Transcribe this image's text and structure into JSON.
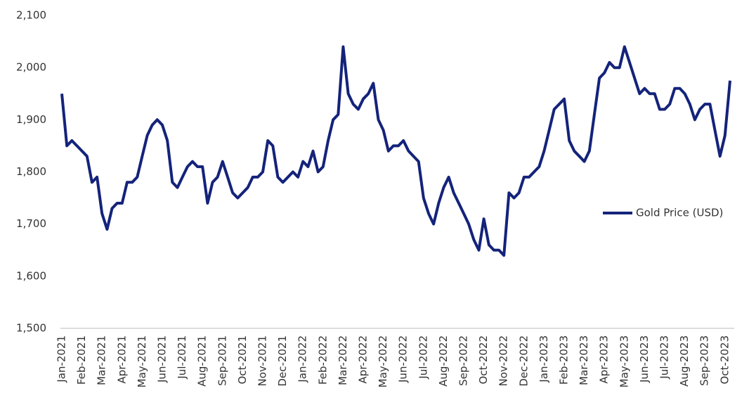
{
  "chart_data": {
    "type": "line",
    "categories": [
      "Jan-2021",
      null,
      null,
      null,
      "Feb-2021",
      null,
      null,
      null,
      "Mar-2021",
      null,
      null,
      null,
      "Apr-2021",
      null,
      null,
      null,
      "May-2021",
      null,
      null,
      null,
      "Jun-2021",
      null,
      null,
      null,
      "Jul-2021",
      null,
      null,
      null,
      "Aug-2021",
      null,
      null,
      null,
      "Sep-2021",
      null,
      null,
      null,
      "Oct-2021",
      null,
      null,
      null,
      "Nov-2021",
      null,
      null,
      null,
      "Dec-2021",
      null,
      null,
      null,
      "Jan-2022",
      null,
      null,
      null,
      "Feb-2022",
      null,
      null,
      null,
      "Mar-2022",
      null,
      null,
      null,
      "Apr-2022",
      null,
      null,
      null,
      "May-2022",
      null,
      null,
      null,
      "Jun-2022",
      null,
      null,
      null,
      "Jul-2022",
      null,
      null,
      null,
      "Aug-2022",
      null,
      null,
      null,
      "Sep-2022",
      null,
      null,
      null,
      "Oct-2022",
      null,
      null,
      null,
      "Nov-2022",
      null,
      null,
      null,
      "Dec-2022",
      null,
      null,
      null,
      "Jan-2023",
      null,
      null,
      null,
      "Feb-2023",
      null,
      null,
      null,
      "Mar-2023",
      null,
      null,
      null,
      "Apr-2023",
      null,
      null,
      null,
      "May-2023",
      null,
      null,
      null,
      "Jun-2023",
      null,
      null,
      null,
      "Jul-2023",
      null,
      null,
      null,
      "Aug-2023",
      null,
      null,
      null,
      "Sep-2023",
      null,
      null,
      null,
      "Oct-2023",
      null
    ],
    "series": [
      {
        "name": "Gold Price (USD)",
        "color": "#14237a",
        "values": [
          1950,
          1850,
          1860,
          1850,
          1840,
          1830,
          1780,
          1790,
          1720,
          1690,
          1730,
          1740,
          1740,
          1780,
          1780,
          1790,
          1830,
          1870,
          1890,
          1900,
          1890,
          1860,
          1780,
          1770,
          1790,
          1810,
          1820,
          1810,
          1810,
          1740,
          1780,
          1790,
          1820,
          1790,
          1760,
          1750,
          1760,
          1770,
          1790,
          1790,
          1800,
          1860,
          1850,
          1790,
          1780,
          1790,
          1800,
          1790,
          1820,
          1810,
          1840,
          1800,
          1810,
          1860,
          1900,
          1910,
          2040,
          1950,
          1930,
          1920,
          1940,
          1950,
          1970,
          1900,
          1880,
          1840,
          1850,
          1850,
          1860,
          1840,
          1830,
          1820,
          1750,
          1720,
          1700,
          1740,
          1770,
          1790,
          1760,
          1740,
          1720,
          1700,
          1670,
          1650,
          1710,
          1660,
          1650,
          1650,
          1640,
          1760,
          1750,
          1760,
          1790,
          1790,
          1800,
          1810,
          1840,
          1880,
          1920,
          1930,
          1940,
          1860,
          1840,
          1830,
          1820,
          1840,
          1910,
          1980,
          1990,
          2010,
          2000,
          2000,
          2040,
          2010,
          1980,
          1950,
          1960,
          1950,
          1950,
          1920,
          1920,
          1930,
          1960,
          1960,
          1950,
          1930,
          1900,
          1920,
          1930,
          1930,
          1880,
          1830,
          1870,
          1975
        ]
      }
    ],
    "ylim": [
      1500,
      2100
    ],
    "yticks": [
      {
        "value": 1500,
        "label": "1,500"
      },
      {
        "value": 1600,
        "label": "1,600"
      },
      {
        "value": 1700,
        "label": "1,700"
      },
      {
        "value": 1800,
        "label": "1,800"
      },
      {
        "value": 1900,
        "label": "1,900"
      },
      {
        "value": 2000,
        "label": "2,000"
      },
      {
        "value": 2100,
        "label": "2,100"
      }
    ],
    "grid": false,
    "legend": "right"
  }
}
